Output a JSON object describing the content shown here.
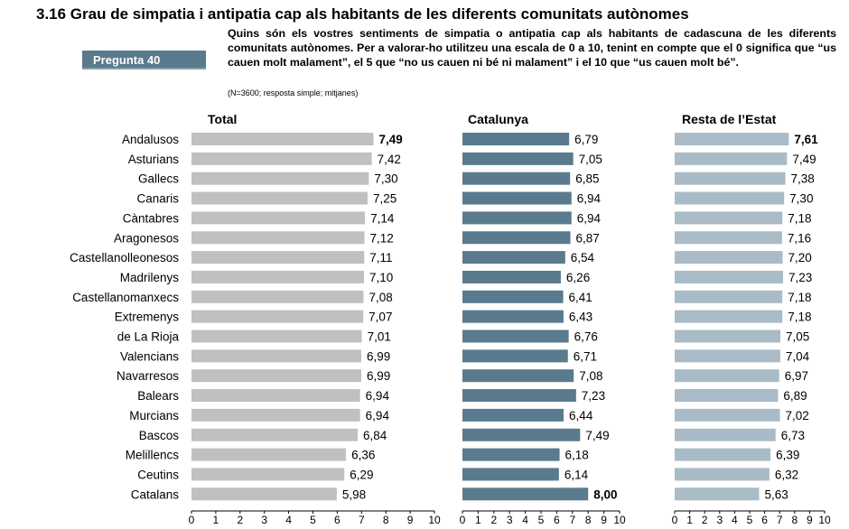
{
  "header": {
    "title": "3.16 Grau de simpatia i antipatia cap als habitants de les diferents comunitats autònomes",
    "badge": "Pregunta  40",
    "question": "Quins són els vostres sentiments de simpatia o antipatia cap als habitants de cadascuna de les diferents comunitats autònomes. Per a valorar-ho utilitzeu una escala de 0 a 10, tenint en compte que el 0 significa que “us cauen molt malament”, el 5 que “no us cauen ni bé ni malament” i el 10 que “us cauen molt bé”.",
    "note": "(N=3600; resposta simple; mitjanes)"
  },
  "colors": {
    "total": "#c0c0c0",
    "catalunya": "#5a7a8e",
    "resta": "#a9bbc6",
    "badge": "#5a7a8e"
  },
  "chart_data": {
    "type": "bar",
    "orientation": "horizontal",
    "categories": [
      "Andalusos",
      "Asturians",
      "Gallecs",
      "Canaris",
      "Càntabres",
      "Aragonesos",
      "Castellanolleonesos",
      "Madrilenys",
      "Castellanomanxecs",
      "Extremenys",
      "de La Rioja",
      "Valencians",
      "Navarresos",
      "Balears",
      "Murcians",
      "Bascos",
      "Melillencs",
      "Ceutins",
      "Catalans"
    ],
    "series": [
      {
        "name": "Total",
        "values": [
          7.49,
          7.42,
          7.3,
          7.25,
          7.14,
          7.12,
          7.11,
          7.1,
          7.08,
          7.07,
          7.01,
          6.99,
          6.99,
          6.94,
          6.94,
          6.84,
          6.36,
          6.29,
          5.98
        ],
        "labels": [
          "7,49",
          "7,42",
          "7,30",
          "7,25",
          "7,14",
          "7,12",
          "7,11",
          "7,10",
          "7,08",
          "7,07",
          "7,01",
          "6,99",
          "6,99",
          "6,94",
          "6,94",
          "6,84",
          "6,36",
          "6,29",
          "5,98"
        ],
        "bold_index": 0
      },
      {
        "name": "Catalunya",
        "values": [
          6.79,
          7.05,
          6.85,
          6.94,
          6.94,
          6.87,
          6.54,
          6.26,
          6.41,
          6.43,
          6.76,
          6.71,
          7.08,
          7.23,
          6.44,
          7.49,
          6.18,
          6.14,
          8.0
        ],
        "labels": [
          "6,79",
          "7,05",
          "6,85",
          "6,94",
          "6,94",
          "6,87",
          "6,54",
          "6,26",
          "6,41",
          "6,43",
          "6,76",
          "6,71",
          "7,08",
          "7,23",
          "6,44",
          "7,49",
          "6,18",
          "6,14",
          "8,00"
        ],
        "bold_index": 18
      },
      {
        "name": "Resta de l’Estat",
        "values": [
          7.61,
          7.49,
          7.38,
          7.3,
          7.18,
          7.16,
          7.2,
          7.23,
          7.18,
          7.18,
          7.05,
          7.04,
          6.97,
          6.89,
          7.02,
          6.73,
          6.39,
          6.32,
          5.63
        ],
        "labels": [
          "7,61",
          "7,49",
          "7,38",
          "7,30",
          "7,18",
          "7,16",
          "7,20",
          "7,23",
          "7,18",
          "7,18",
          "7,05",
          "7,04",
          "6,97",
          "6,89",
          "7,02",
          "6,73",
          "6,39",
          "6,32",
          "5,63"
        ],
        "bold_index": 0
      }
    ],
    "xlim": [
      0,
      10
    ],
    "xticks": [
      "0",
      "1",
      "2",
      "3",
      "4",
      "5",
      "6",
      "7",
      "8",
      "9",
      "10"
    ]
  }
}
